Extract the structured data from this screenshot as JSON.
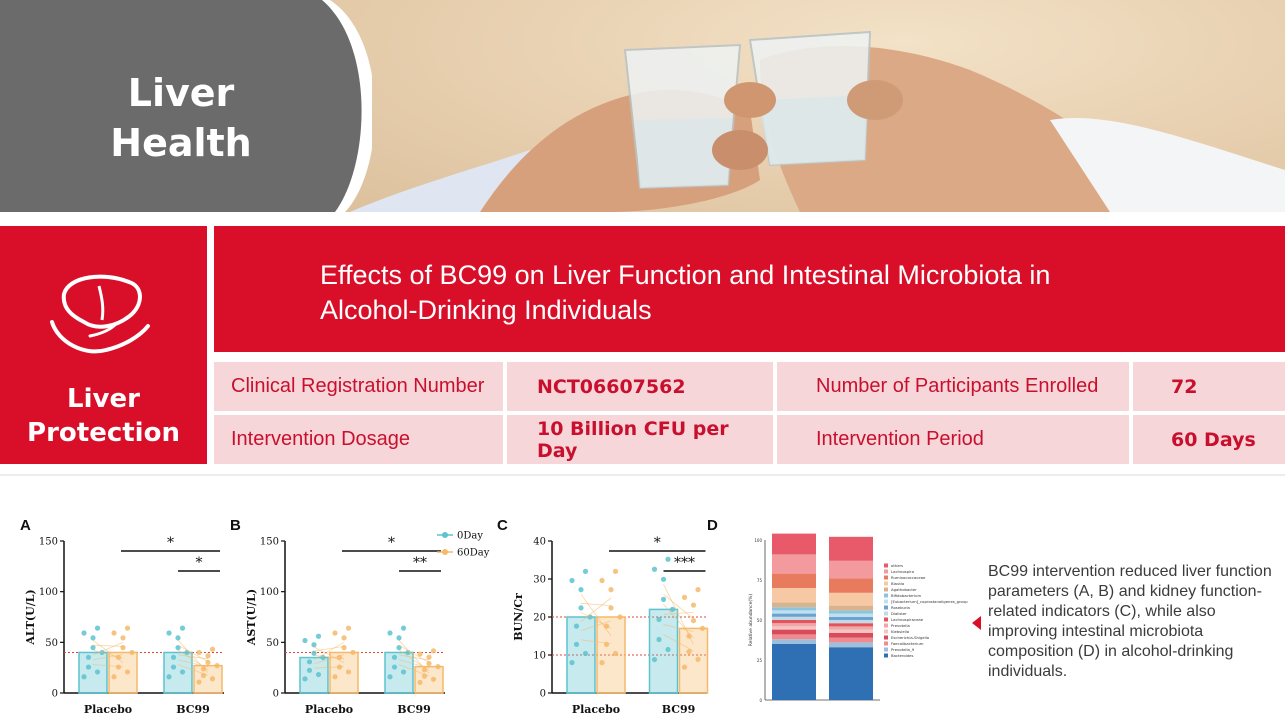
{
  "hero": {
    "title_line1": "Liver",
    "title_line2": "Health",
    "photo": "toasting-glasses-photo"
  },
  "panel": {
    "icon": "liver-hand-icon",
    "side_label_line1": "Liver",
    "side_label_line2": "Protection",
    "title_line1": "Effects of BC99 on Liver Function and Intestinal Microbiota in",
    "title_line2": "Alcohol-Drinking Individuals",
    "rows": [
      {
        "label1": "Clinical Registration Number",
        "value1": "NCT06607562",
        "label2": "Number of Participants Enrolled",
        "value2": "72"
      },
      {
        "label1": "Intervention Dosage",
        "value1": "10 Billion CFU per Day",
        "label2": "Intervention Period",
        "value2": "60 Days"
      }
    ]
  },
  "colors": {
    "brand_red": "#d90f2a",
    "pale_red": "#f7d6d9",
    "teal": "#5cc3cf",
    "orange": "#f5b96b"
  },
  "chart_data": [
    {
      "panel": "A",
      "type": "bar",
      "ylabel": "ALT(U/L)",
      "ylim": [
        0,
        150
      ],
      "yticks": [
        0,
        50,
        100,
        150
      ],
      "categories": [
        "Placebo",
        "BC99"
      ],
      "series": [
        {
          "name": "0Day",
          "values": [
            40,
            40
          ]
        },
        {
          "name": "60Day",
          "values": [
            40,
            27
          ]
        }
      ],
      "reference_line": 40,
      "significance": [
        "*",
        "*"
      ]
    },
    {
      "panel": "B",
      "type": "bar",
      "ylabel": "AST(U/L)",
      "ylim": [
        0,
        150
      ],
      "yticks": [
        0,
        50,
        100,
        150
      ],
      "categories": [
        "Placebo",
        "BC99"
      ],
      "series": [
        {
          "name": "0Day",
          "values": [
            35,
            40
          ]
        },
        {
          "name": "60Day",
          "values": [
            40,
            26
          ]
        }
      ],
      "reference_line": 40,
      "significance": [
        "*",
        "**"
      ],
      "legend": [
        "0Day",
        "60Day"
      ]
    },
    {
      "panel": "C",
      "type": "bar",
      "ylabel": "BUN/Cr",
      "ylim": [
        0,
        40
      ],
      "yticks": [
        0,
        10,
        20,
        30,
        40
      ],
      "categories": [
        "Placebo",
        "BC99"
      ],
      "series": [
        {
          "name": "0Day",
          "values": [
            20,
            22
          ]
        },
        {
          "name": "60Day",
          "values": [
            20,
            17
          ]
        }
      ],
      "reference_lines": [
        10,
        20
      ],
      "significance": [
        "*",
        "***"
      ]
    },
    {
      "panel": "D",
      "type": "bar",
      "stacked": true,
      "ylabel": "Relative abundance(%)",
      "yticks": [
        0,
        25,
        50,
        75,
        100
      ],
      "legend": [
        "others",
        "Lachnospira",
        "Ruminococcaceae",
        "Blautia",
        "Agathobacter",
        "Bifidobacterium",
        "[Eubacterium]_coprostanoligenes_group",
        "Roseburia",
        "Dialister",
        "Lachnospiraceae",
        "Prevotella",
        "Klebsiella",
        "Escherichia-Shigella",
        "Faecalibacterium",
        "Prevotella_9",
        "Bacteroides"
      ],
      "bars": [
        {
          "values": [
            13,
            12,
            9,
            9,
            3,
            2,
            2,
            2,
            2,
            2,
            2,
            2,
            3,
            3,
            3,
            35
          ]
        },
        {
          "values": [
            15,
            11,
            9,
            8,
            3,
            2,
            2,
            2,
            2,
            2,
            2,
            2,
            3,
            3,
            3,
            33
          ]
        }
      ]
    }
  ],
  "description": "BC99 intervention reduced liver function parameters (A, B) and kidney function-related indicators (C), while also improving intestinal microbiota composition (D) in alcohol-drinking individuals."
}
